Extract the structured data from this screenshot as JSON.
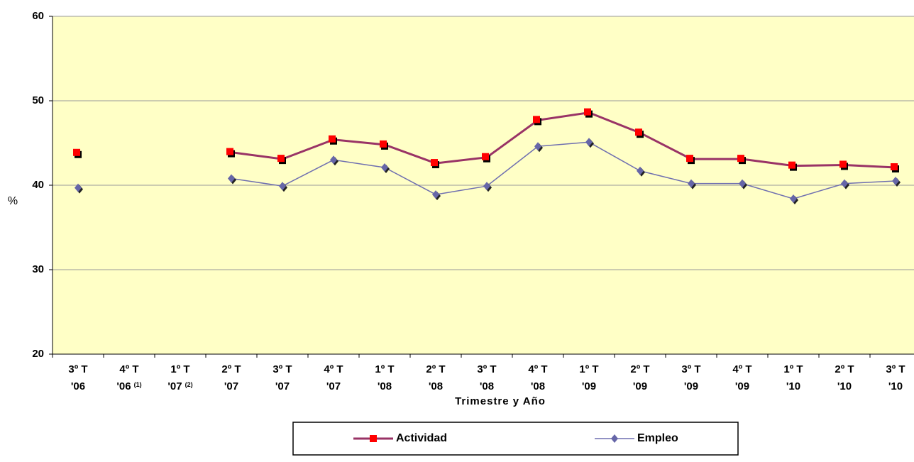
{
  "chart_data": {
    "type": "line",
    "x_label": "Trimestre y Año",
    "y_label": "%",
    "categories": [
      [
        "3º T",
        "'06"
      ],
      [
        "4º T",
        "'06",
        "(1)"
      ],
      [
        "1º T",
        "'07",
        "(2)"
      ],
      [
        "2º T",
        "'07"
      ],
      [
        "3º T",
        "'07"
      ],
      [
        "4º T",
        "'07"
      ],
      [
        "1º T",
        "'08"
      ],
      [
        "2º T",
        "'08"
      ],
      [
        "3º T",
        "'08"
      ],
      [
        "4º T",
        "'08"
      ],
      [
        "1º T",
        "'09"
      ],
      [
        "2º T",
        "'09"
      ],
      [
        "3º T",
        "'09"
      ],
      [
        "4º T",
        "'09"
      ],
      [
        "1º T",
        "'10"
      ],
      [
        "2º T",
        "'10"
      ],
      [
        "3º T",
        "'10"
      ]
    ],
    "series": [
      {
        "name": "Actividad",
        "color": "#993366",
        "marker_color": "#ff0000",
        "marker": "square",
        "values": [
          43.8,
          null,
          null,
          43.9,
          43.1,
          45.4,
          44.8,
          42.6,
          43.3,
          47.7,
          48.6,
          46.2,
          43.1,
          43.1,
          42.3,
          42.4,
          42.1
        ]
      },
      {
        "name": "Empleo",
        "color": "#6f6fb0",
        "marker_color": "#6666a8",
        "marker": "diamond",
        "values": [
          39.7,
          null,
          null,
          40.8,
          39.9,
          43.0,
          42.1,
          38.9,
          39.9,
          44.6,
          45.1,
          41.7,
          40.2,
          40.2,
          38.4,
          40.2,
          40.5
        ]
      }
    ],
    "ylim": [
      20,
      60
    ],
    "yticks": [
      20,
      30,
      40,
      50,
      60
    ],
    "grid": true,
    "legend": "bottom",
    "plot_background": "#ffffc6"
  }
}
